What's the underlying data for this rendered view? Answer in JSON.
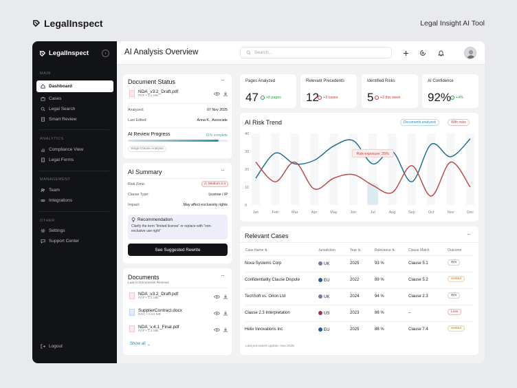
{
  "top": {
    "brand": "LegalInspect",
    "tool_title": "Legal Insight AI Tool"
  },
  "sidebar": {
    "brand": "LegalInspect",
    "sections": [
      "MAIN",
      "ANALYTICS",
      "MANAGEMENT",
      "OTHER"
    ],
    "main_items": [
      "Dashboard",
      "Cases",
      "Legal Search",
      "Smart Review"
    ],
    "analytics_items": [
      "Compliance View",
      "Legal Forms"
    ],
    "management_items": [
      "Team",
      "Integrations"
    ],
    "other_items": [
      "Settings",
      "Support Center"
    ],
    "logout": "Logout"
  },
  "header": {
    "title": "AI Analysis Overview",
    "search_placeholder": "Search..."
  },
  "document_status": {
    "title": "Document Status",
    "file_name": "NDA_v3.2_Draft.pdf",
    "file_meta": "PDF • 1.1 MB",
    "analyzed_label": "Analyzed:",
    "analyzed_value": "07 Nov 2025",
    "edited_label": "Last Edited:",
    "edited_value": "Anna K., Associate",
    "progress_label": "AI Review Progress",
    "progress_text": "91% complete",
    "progress_value": 91,
    "stage": "Stage:Clause Analysis"
  },
  "ai_summary": {
    "title": "AI Summary",
    "risk_zone_label": "Risk Zone:",
    "risk_zone_value": "Medium 2.3",
    "clause_type_label": "Clause Type:",
    "clause_type_value": "License / IP",
    "impact_label": "Impact:",
    "impact_value": "May affect exclusivity rights",
    "rec_title": "Recommendation",
    "rec_text": "Clarify the term “limited license” or replace with “non-exclusive use right”",
    "button": "See Suggested Rewrite"
  },
  "documents": {
    "title": "Documents",
    "subtitle": "Last AI Documents Reviews",
    "items": [
      {
        "name": "NDA_v3.2_Draft.pdf",
        "meta": "PDF • 1.1 MB",
        "type": "pdf"
      },
      {
        "name": "SupplierContract.docx",
        "meta": "DOC • 0.63 MB",
        "type": "doc"
      },
      {
        "name": "NDA_v.4.1_Final.pdf",
        "meta": "PDF • 1.4 MB",
        "type": "pdf"
      }
    ],
    "show_all": "Show all"
  },
  "kpis": [
    {
      "label": "Pages Analyzed",
      "value": "47",
      "delta": "+6 pages",
      "dir": "up"
    },
    {
      "label": "Relevant Precedents",
      "value": "12",
      "delta": "+3 cases",
      "dir": "down"
    },
    {
      "label": "Identified Risks",
      "value": "5",
      "delta": "+2 this week",
      "dir": "down"
    },
    {
      "label": "AI Confidence",
      "value": "92%",
      "delta": "+4%",
      "dir": "up"
    }
  ],
  "chart_data": {
    "type": "line",
    "title": "AI Risk Trend",
    "categories": [
      "Jan",
      "Feb",
      "Mar",
      "Apr",
      "May",
      "Jun",
      "Jul",
      "Aug",
      "Sep",
      "Oct",
      "Nov",
      "Dec"
    ],
    "ylim": [
      0,
      40
    ],
    "yticks": [
      "40",
      "30",
      "20",
      "10",
      "0"
    ],
    "legend": [
      "Documents analyzed",
      "With risks"
    ],
    "series": [
      {
        "name": "Documents analyzed",
        "color": "#1f6f92",
        "values": [
          15,
          29,
          23,
          25,
          33,
          36,
          23,
          30,
          13,
          34,
          27,
          37
        ]
      },
      {
        "name": "With risks",
        "color": "#c0474a",
        "values": [
          24,
          13,
          24,
          9,
          15,
          17,
          11,
          7,
          22,
          5,
          24,
          10
        ]
      }
    ],
    "tooltip": {
      "text": "Risk exposure: 25%",
      "category": "Jul"
    }
  },
  "cases": {
    "title": "Relevant Cases",
    "columns": [
      "Case Name ⇅",
      "Jurisdiction",
      "Year ⇅",
      "Relevance ⇅",
      "Clause Match",
      "Outcome"
    ],
    "rows": [
      {
        "name": "Nova Systems Corp",
        "jur": "UK",
        "year": "2025",
        "rel": "93 %",
        "clause": "Clause 5.1",
        "outcome": "Win"
      },
      {
        "name": "Confidentiality Clause Dispute",
        "jur": "EU",
        "year": "2022",
        "rel": "89 %",
        "clause": "Clause 5.2",
        "outcome": "Settled"
      },
      {
        "name": "TechSoft vs. Orion Ltd",
        "jur": "UK",
        "year": "2024",
        "rel": "94 %",
        "clause": "Clause 2.3",
        "outcome": "Win"
      },
      {
        "name": "Clause 2.3 Interpretation",
        "jur": "US",
        "year": "2023",
        "rel": "86 %",
        "clause": "–",
        "outcome": "Loss"
      },
      {
        "name": "Helix Innovations Inc",
        "jur": "EU",
        "year": "2025",
        "rel": "88 %",
        "clause": "Clause 7.4",
        "outcome": "Settled"
      }
    ],
    "footer": "Last precedent update: Nov 2025"
  }
}
